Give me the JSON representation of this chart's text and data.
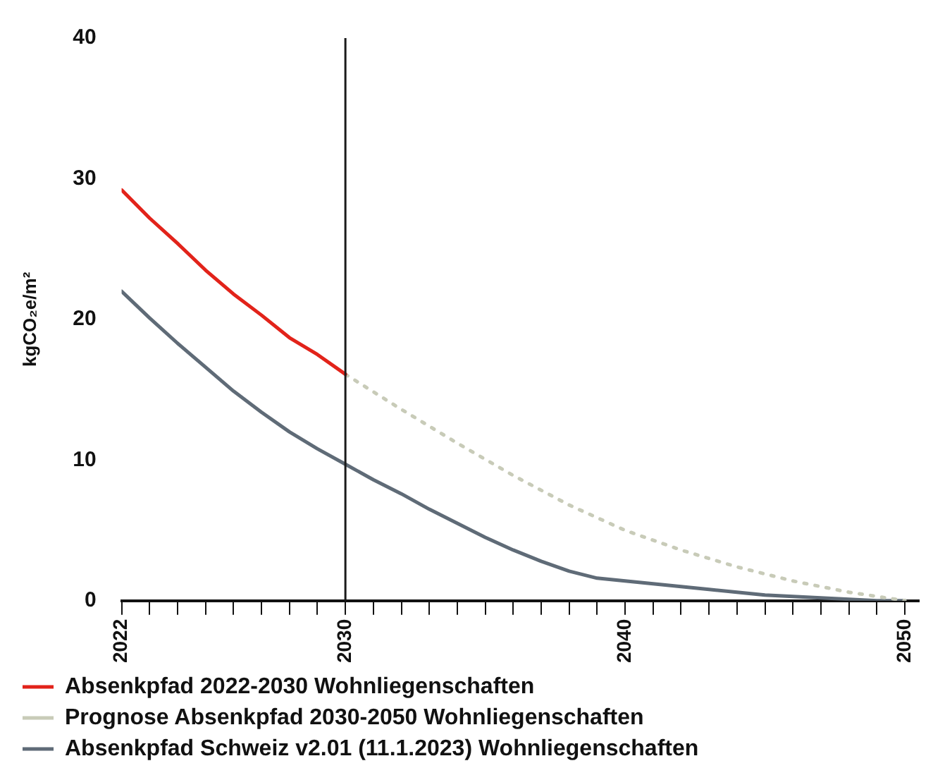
{
  "chart_data": {
    "type": "line",
    "ylabel": "kgCO₂e/m²",
    "xlim": [
      2022,
      2050.5
    ],
    "xticks": [
      2022,
      {
        "value": 2023,
        "label": null
      },
      {
        "value": 2024,
        "label": null
      },
      {
        "value": 2025,
        "label": null
      },
      {
        "value": 2026,
        "label": null
      },
      {
        "value": 2027,
        "label": null
      },
      {
        "value": 2028,
        "label": null
      },
      {
        "value": 2029,
        "label": null
      },
      2030,
      {
        "value": 2031,
        "label": null
      },
      {
        "value": 2032,
        "label": null
      },
      {
        "value": 2033,
        "label": null
      },
      {
        "value": 2034,
        "label": null
      },
      {
        "value": 2035,
        "label": null
      },
      {
        "value": 2036,
        "label": null
      },
      {
        "value": 2037,
        "label": null
      },
      {
        "value": 2038,
        "label": null
      },
      {
        "value": 2039,
        "label": null
      },
      2040,
      {
        "value": 2041,
        "label": null
      },
      {
        "value": 2042,
        "label": null
      },
      {
        "value": 2043,
        "label": null
      },
      {
        "value": 2044,
        "label": null
      },
      {
        "value": 2045,
        "label": null
      },
      {
        "value": 2046,
        "label": null
      },
      {
        "value": 2047,
        "label": null
      },
      {
        "value": 2048,
        "label": null
      },
      {
        "value": 2049,
        "label": null
      },
      2050
    ],
    "ylim": [
      0,
      40
    ],
    "yticks": [
      0,
      10,
      20,
      30,
      40
    ],
    "grid": false,
    "legend": "bottom",
    "marker": "none",
    "ref_lines": [
      {
        "axis": "x",
        "value": 2030,
        "color": "#1a1a1a"
      }
    ],
    "series": [
      {
        "name": "Absenkpfad 2022-2030 Wohnliegenschaften",
        "color": "#e2231a",
        "line_style": "solid",
        "x": [
          2022,
          2023,
          2024,
          2025,
          2026,
          2027,
          2028,
          2029,
          2030
        ],
        "values": [
          29.2,
          27.2,
          25.4,
          23.5,
          21.8,
          20.3,
          18.7,
          17.5,
          16.1
        ]
      },
      {
        "name": "Prognose Absenkpfad 2030-2050 Wohnliegenschaften",
        "color": "#c8cbb8",
        "line_style": "dotted",
        "x": [
          2030,
          2032,
          2034,
          2036,
          2038,
          2040,
          2042,
          2044,
          2046,
          2048,
          2050
        ],
        "values": [
          16.1,
          13.6,
          11.2,
          8.9,
          6.8,
          5.0,
          3.6,
          2.4,
          1.4,
          0.6,
          0
        ]
      },
      {
        "name": "Absenkpfad Schweiz v2.01 (11.1.2023) Wohnliegenschaften",
        "color": "#5f6b77",
        "line_style": "solid",
        "x": [
          2022,
          2023,
          2024,
          2025,
          2026,
          2027,
          2028,
          2029,
          2030,
          2031,
          2032,
          2033,
          2034,
          2035,
          2036,
          2037,
          2038,
          2039,
          2040,
          2041,
          2042,
          2043,
          2044,
          2045,
          2046,
          2047,
          2048,
          2049,
          2050
        ],
        "values": [
          22.0,
          20.1,
          18.3,
          16.6,
          14.9,
          13.4,
          12.0,
          10.8,
          9.7,
          8.6,
          7.6,
          6.5,
          5.5,
          4.5,
          3.6,
          2.8,
          2.1,
          1.6,
          1.4,
          1.2,
          1.0,
          0.8,
          0.6,
          0.4,
          0.3,
          0.2,
          0.1,
          0,
          0
        ]
      }
    ]
  }
}
